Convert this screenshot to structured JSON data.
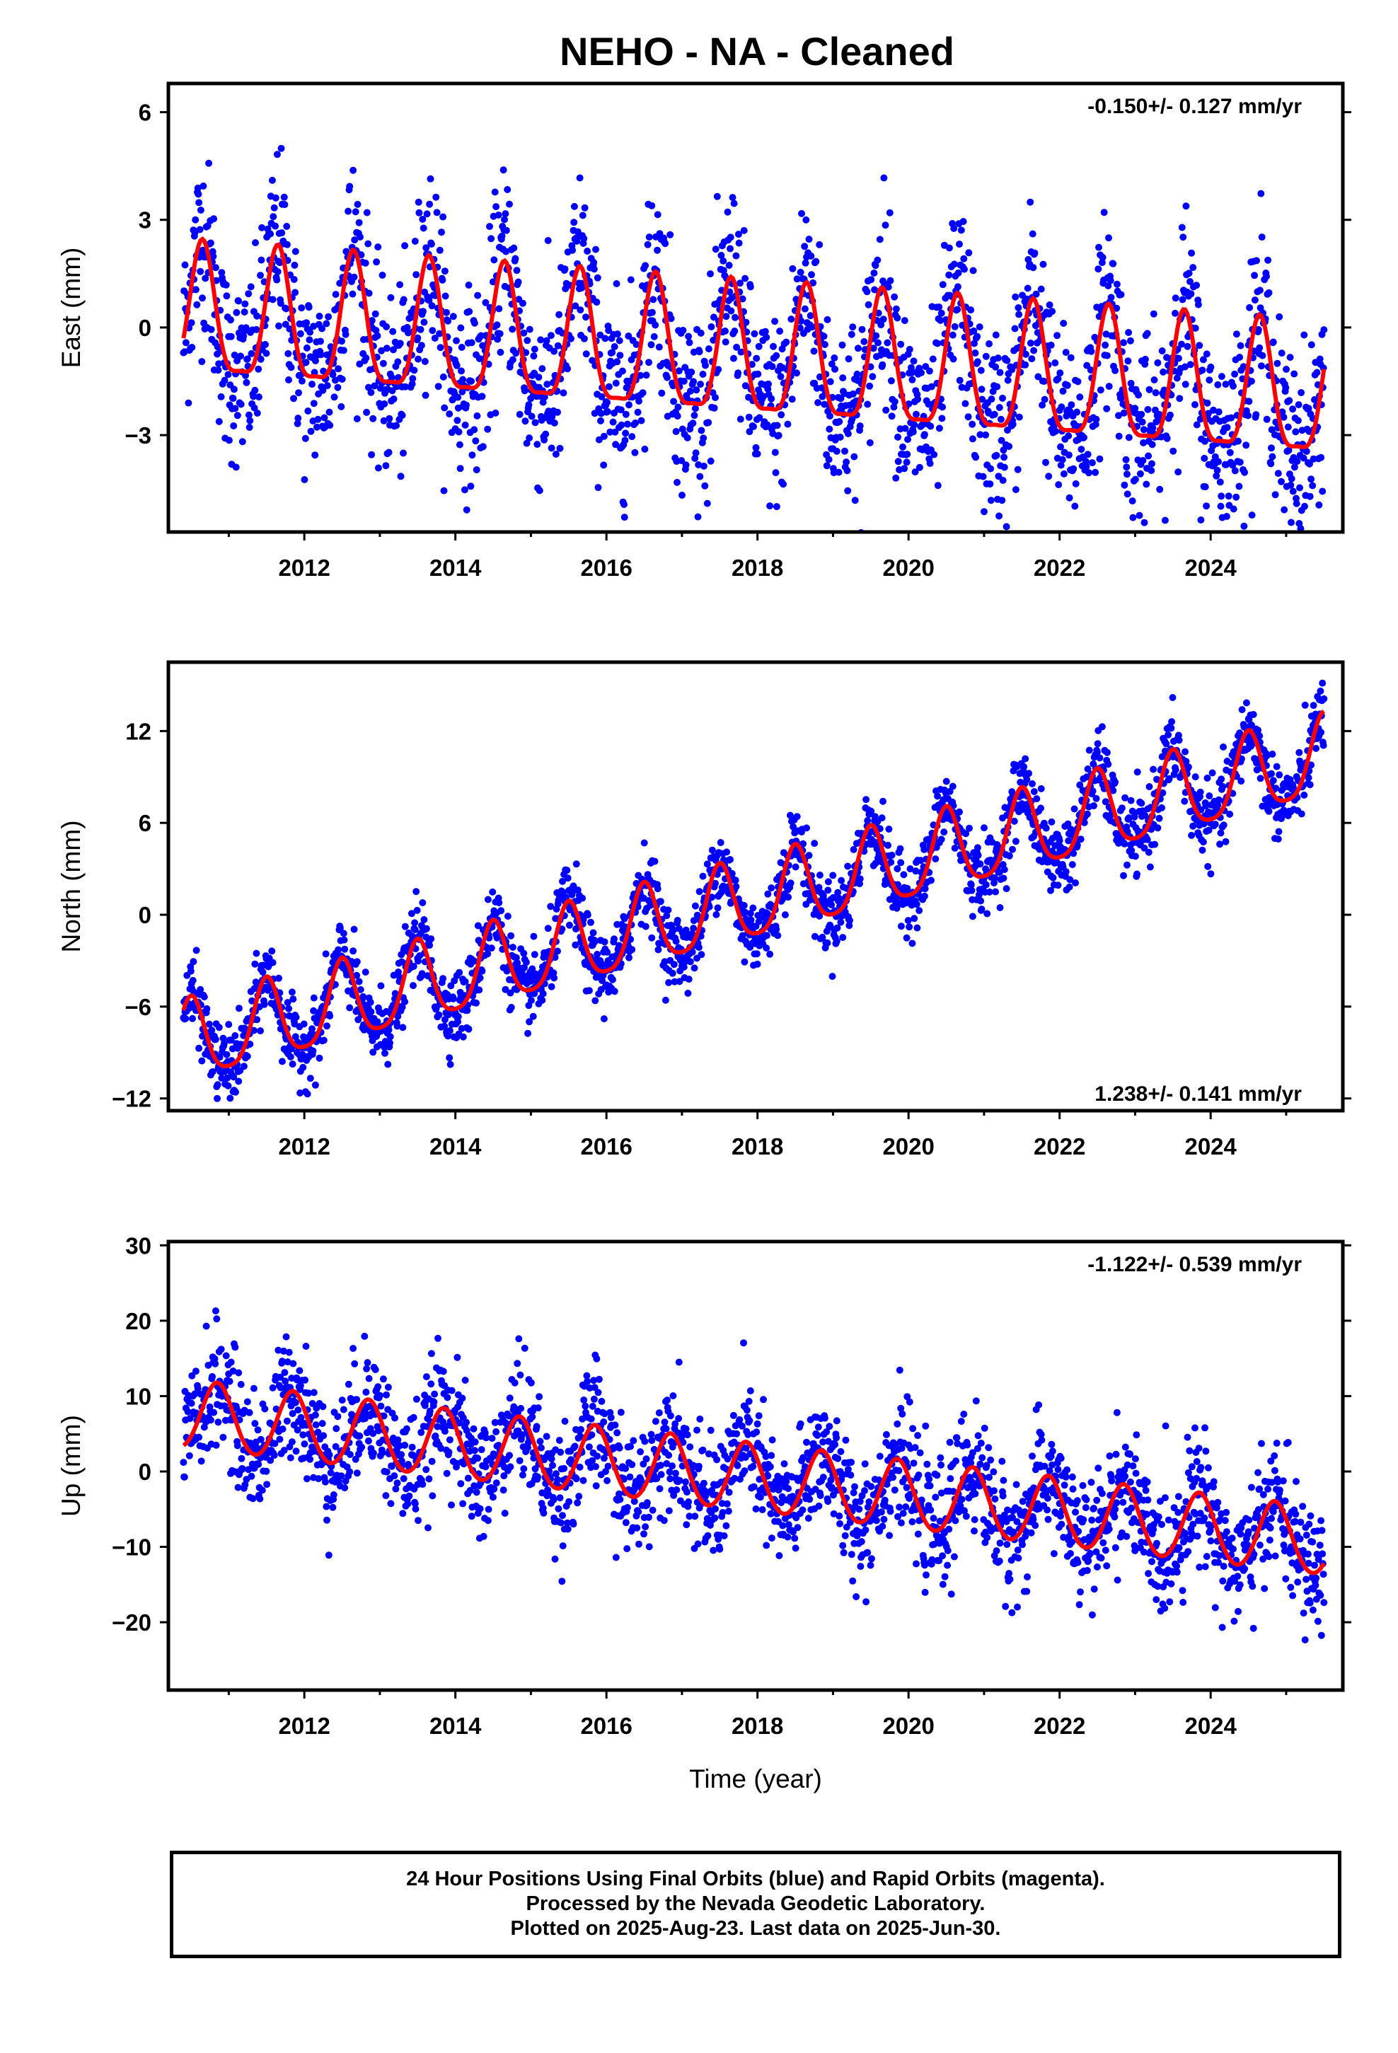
{
  "title": "NEHO  - NA - Cleaned",
  "footer": {
    "line1": "24 Hour Positions Using Final Orbits (blue) and Rapid Orbits (magenta).",
    "line2": "Processed by the Nevada Geodetic Laboratory.",
    "line3": "Plotted on 2025-Aug-23. Last data on 2025-Jun-30."
  },
  "colors": {
    "points": "#0000ff",
    "fit": "#ff0000",
    "frame": "#000000"
  },
  "chart_data": [
    {
      "type": "scatter",
      "title": "NEHO  - NA - Cleaned",
      "xlabel": "",
      "ylabel": "East (mm)",
      "xlim": [
        2010.2,
        2025.75
      ],
      "ylim": [
        -5.7,
        6.8
      ],
      "xticks": [
        2012,
        2014,
        2016,
        2018,
        2020,
        2022,
        2024
      ],
      "yticks": [
        -3,
        0,
        3,
        6
      ],
      "rate": "-0.150+/- 0.127 mm/yr",
      "rate_position": "top-right",
      "fit": {
        "intercept_at_start": 0.2,
        "slope": -0.15,
        "annual_amplitude": 1.8,
        "semiannual_amplitude": 0.5,
        "peak_fraction": 0.65
      },
      "scatter_std": 1.3,
      "data_span": [
        2010.4,
        2025.5
      ]
    },
    {
      "type": "scatter",
      "title": "",
      "xlabel": "",
      "ylabel": "North (mm)",
      "xlim": [
        2010.2,
        2025.75
      ],
      "ylim": [
        -12.8,
        16.5
      ],
      "xticks": [
        2012,
        2014,
        2016,
        2018,
        2020,
        2022,
        2024
      ],
      "yticks": [
        -12,
        -6,
        0,
        6,
        12
      ],
      "rate": "1.238+/- 0.141 mm/yr",
      "rate_position": "bottom-right",
      "fit": {
        "intercept_at_start": -8.5,
        "slope": 1.238,
        "annual_amplitude": 2.6,
        "semiannual_amplitude": 0.5,
        "peak_fraction": 0.5
      },
      "scatter_std": 1.2,
      "data_span": [
        2010.4,
        2025.5
      ]
    },
    {
      "type": "scatter",
      "title": "",
      "xlabel": "Time (year)",
      "ylabel": "Up (mm)",
      "xlim": [
        2010.2,
        2025.75
      ],
      "ylim": [
        -29,
        30.5
      ],
      "xticks": [
        2012,
        2014,
        2016,
        2018,
        2020,
        2022,
        2024
      ],
      "yticks": [
        -20,
        -10,
        0,
        10,
        20,
        30
      ],
      "rate": "-1.122+/- 0.539 mm/yr",
      "rate_position": "top-right",
      "fit": {
        "intercept_at_start": 7.5,
        "slope": -1.122,
        "annual_amplitude": 4.5,
        "semiannual_amplitude": 0.3,
        "peak_fraction": 0.85
      },
      "scatter_std": 4.0,
      "data_span": [
        2010.4,
        2025.5
      ]
    }
  ]
}
